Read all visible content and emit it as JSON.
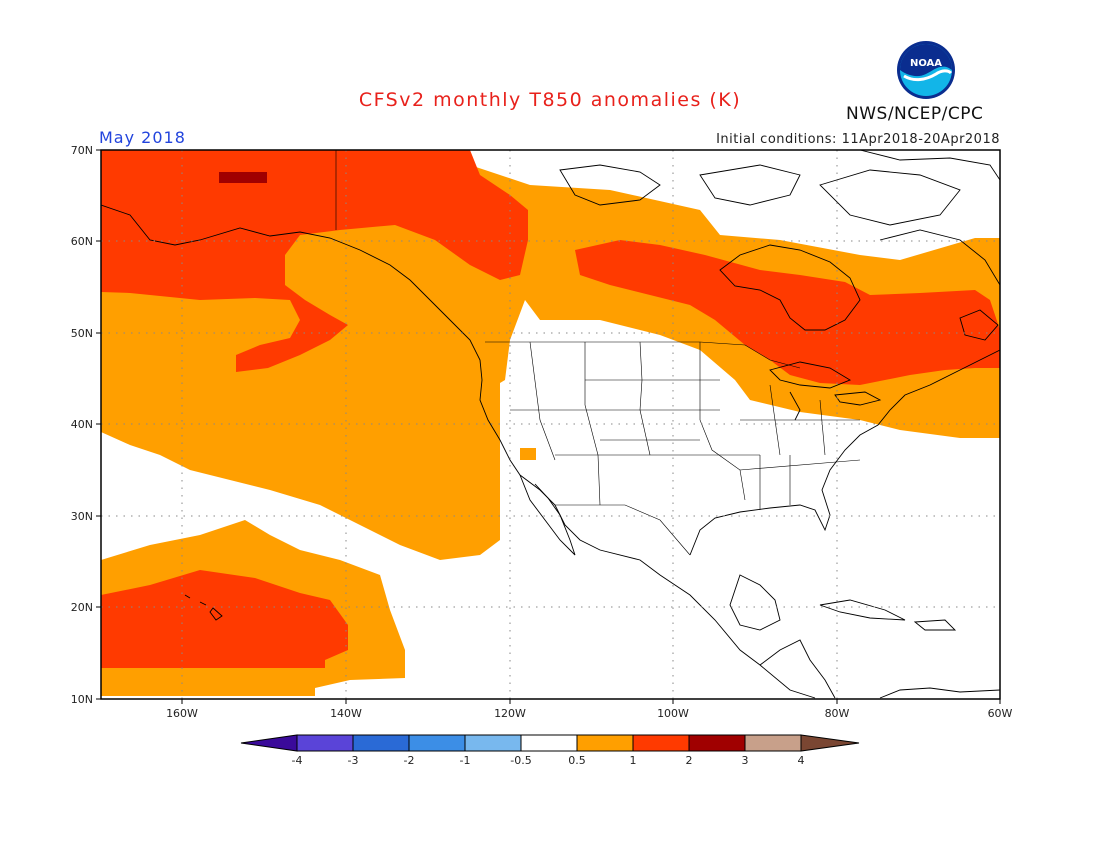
{
  "title": "CFSv2 monthly T850 anomalies (K)",
  "month": "May 2018",
  "initial_conditions": "Initial conditions: 11Apr2018-20Apr2018",
  "agency": "NWS/NCEP/CPC",
  "logo_text": "NOAA",
  "colors": {
    "title": "#e8211b",
    "month": "#2244dd",
    "band_0_5_1": "#ff9f00",
    "band_1_2": "#ff3a00",
    "band_2_3": "#a00000"
  },
  "map": {
    "lat_labels": [
      "70N",
      "60N",
      "50N",
      "40N",
      "30N",
      "20N",
      "10N"
    ],
    "lon_labels": [
      "160W",
      "140W",
      "120W",
      "100W",
      "80W",
      "60W"
    ],
    "extent": {
      "lon_min": -170,
      "lon_max": -60,
      "lat_min": 10,
      "lat_max": 70
    },
    "grid": "dotted"
  },
  "colorbar": {
    "ticks": [
      "-4",
      "-3",
      "-2",
      "-1",
      "-0.5",
      "0.5",
      "1",
      "2",
      "3",
      "4"
    ],
    "colors": [
      "#3a0a9a",
      "#5a44d8",
      "#2a6ad6",
      "#3c8ee6",
      "#78b8ee",
      "#ffffff",
      "#ff9f00",
      "#ff3a00",
      "#a00000",
      "#c8a08a",
      "#7a4632"
    ]
  }
}
